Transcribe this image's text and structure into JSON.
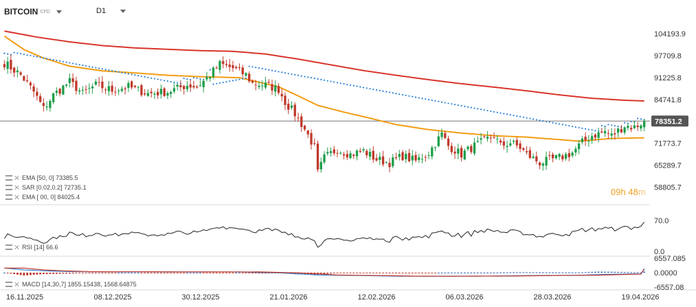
{
  "header": {
    "symbol": "BITCOIN",
    "instrument_type": "CFD",
    "timeframe": "D1"
  },
  "indicators": [
    {
      "label": "EMA [50, 0] 73385.5",
      "color": "#f39c12"
    },
    {
      "label": "SAR [0.02,0.2] 72735.1",
      "color": "#2980d9"
    },
    {
      "label": "EMA [  00, 0] 84025.4",
      "color": "#d9342b"
    }
  ],
  "rsi_label": "RSI [14] 66.6",
  "macd_label": "MACD [14,30,7] 1855.15438, 1568.64875",
  "timer": {
    "hours": "09h",
    "minutes": "48",
    "unit": "m"
  },
  "colors": {
    "bull": "#1e9e4a",
    "bear": "#c0392b",
    "ema50": "#f39c12",
    "ema200": "#d9342b",
    "sar": "#2980d9",
    "price_line": "#777777"
  },
  "chart_data": {
    "type": "candlestick",
    "timeframe": "D1",
    "price_axis": {
      "ticks": [
        "104193.9",
        "97709.8",
        "91225.8",
        "84741.8",
        "78351.2",
        "71773.7",
        "65289.7",
        "58805.7"
      ],
      "range": [
        54000,
        108500
      ]
    },
    "last_price": 78351.2,
    "x_ticks": [
      "16.11.2025",
      "08.12.2025",
      "30.12.2025",
      "21.01.2026",
      "12.02.2026",
      "06.03.2026",
      "28.03.2026",
      "19.04.2026"
    ],
    "close_path": [
      [
        0,
        95600
      ],
      [
        5,
        92000
      ],
      [
        9,
        87000
      ],
      [
        12,
        82000
      ],
      [
        15,
        86000
      ],
      [
        20,
        90000
      ],
      [
        24,
        86500
      ],
      [
        28,
        89000
      ],
      [
        33,
        87500
      ],
      [
        38,
        88500
      ],
      [
        44,
        86500
      ],
      [
        50,
        87000
      ],
      [
        56,
        89000
      ],
      [
        59,
        88500
      ],
      [
        62,
        91000
      ],
      [
        66,
        95200
      ],
      [
        70,
        94000
      ],
      [
        74,
        92000
      ],
      [
        76,
        89500
      ],
      [
        80,
        89000
      ],
      [
        84,
        87800
      ],
      [
        86,
        84000
      ],
      [
        89,
        80500
      ],
      [
        92,
        76000
      ],
      [
        95,
        70500
      ],
      [
        96,
        63000
      ],
      [
        98,
        67500
      ],
      [
        102,
        70000
      ],
      [
        106,
        68500
      ],
      [
        110,
        69500
      ],
      [
        114,
        67000
      ],
      [
        118,
        66000
      ],
      [
        122,
        68000
      ],
      [
        126,
        66500
      ],
      [
        130,
        69000
      ],
      [
        134,
        74500
      ],
      [
        136,
        71000
      ],
      [
        140,
        68500
      ],
      [
        144,
        71000
      ],
      [
        148,
        73000
      ],
      [
        150,
        74000
      ],
      [
        152,
        71000
      ],
      [
        155,
        72000
      ],
      [
        158,
        70500
      ],
      [
        160,
        68500
      ],
      [
        164,
        66000
      ],
      [
        168,
        67000
      ],
      [
        171,
        67800
      ],
      [
        174,
        69000
      ],
      [
        177,
        72000
      ],
      [
        180,
        74000
      ],
      [
        184,
        75200
      ],
      [
        186,
        74000
      ],
      [
        190,
        77000
      ],
      [
        193,
        76500
      ],
      [
        196,
        78351
      ]
    ],
    "ema50_path": [
      [
        0,
        103500
      ],
      [
        6,
        99500
      ],
      [
        12,
        97000
      ],
      [
        20,
        94600
      ],
      [
        30,
        93200
      ],
      [
        40,
        92600
      ],
      [
        50,
        91900
      ],
      [
        60,
        91500
      ],
      [
        72,
        91200
      ],
      [
        84,
        88500
      ],
      [
        90,
        85800
      ],
      [
        96,
        83000
      ],
      [
        104,
        81000
      ],
      [
        112,
        79200
      ],
      [
        120,
        77300
      ],
      [
        130,
        75800
      ],
      [
        140,
        74800
      ],
      [
        150,
        74000
      ],
      [
        160,
        73600
      ],
      [
        168,
        73000
      ],
      [
        176,
        72400
      ],
      [
        186,
        73200
      ],
      [
        196,
        73400
      ]
    ],
    "ema200_path": [
      [
        0,
        105000
      ],
      [
        10,
        103200
      ],
      [
        20,
        101800
      ],
      [
        30,
        100700
      ],
      [
        40,
        100000
      ],
      [
        50,
        99600
      ],
      [
        60,
        99200
      ],
      [
        70,
        99000
      ],
      [
        80,
        98200
      ],
      [
        90,
        96700
      ],
      [
        100,
        95000
      ],
      [
        110,
        93300
      ],
      [
        120,
        91900
      ],
      [
        130,
        90600
      ],
      [
        140,
        89400
      ],
      [
        150,
        88400
      ],
      [
        160,
        87300
      ],
      [
        170,
        86100
      ],
      [
        180,
        85100
      ],
      [
        190,
        84500
      ],
      [
        196,
        84300
      ]
    ],
    "rsi": {
      "period": 14,
      "value": 66.6,
      "ticks": [
        "70.0",
        "0.0"
      ]
    },
    "macd": {
      "params": [
        14,
        30,
        7
      ],
      "values": [
        1855.15438,
        1568.64875
      ],
      "ticks": [
        "6557.085",
        "0.0000",
        "-6557.08"
      ]
    }
  }
}
